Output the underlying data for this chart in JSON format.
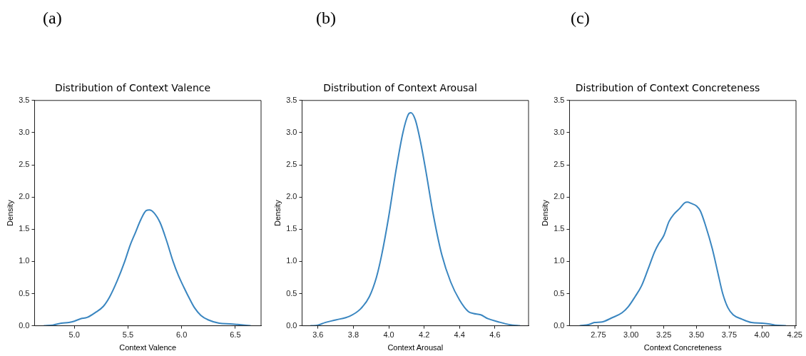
{
  "chart_data": [
    {
      "type": "line",
      "title": "Distribution of Context Valence",
      "xlabel": "Context Valence",
      "ylabel": "Density",
      "annotations": [
        "(a)"
      ],
      "xlim": [
        4.63,
        6.74
      ],
      "xticks": [
        {
          "value": 5,
          "label": "5.0"
        },
        5.5,
        {
          "value": 6,
          "label": "6.0"
        },
        6.5
      ],
      "ylim": [
        0,
        3.5
      ],
      "yticks": [
        {
          "value": 0,
          "label": "0.0"
        },
        0.5,
        {
          "value": 1,
          "label": "1.0"
        },
        1.5,
        {
          "value": 2,
          "label": "2.0"
        },
        2.5,
        {
          "value": 3,
          "label": "3.0"
        },
        3.5
      ],
      "grid": false,
      "legend": false,
      "marker": "none",
      "line_style": "solid",
      "series": [
        {
          "color": "#3a86c0",
          "x": [
            4.72,
            4.8,
            4.88,
            4.95,
            5.0,
            5.06,
            5.12,
            5.2,
            5.27,
            5.33,
            5.4,
            5.47,
            5.52,
            5.57,
            5.62,
            5.67,
            5.7,
            5.74,
            5.8,
            5.86,
            5.92,
            5.97,
            6.02,
            6.08,
            6.12,
            6.18,
            6.25,
            6.35,
            6.45,
            6.52,
            6.64
          ],
          "values": [
            0,
            0.01,
            0.04,
            0.05,
            0.07,
            0.11,
            0.13,
            0.21,
            0.3,
            0.45,
            0.7,
            1.0,
            1.25,
            1.45,
            1.65,
            1.79,
            1.8,
            1.76,
            1.6,
            1.32,
            1.0,
            0.78,
            0.6,
            0.4,
            0.28,
            0.16,
            0.09,
            0.04,
            0.03,
            0.02,
            0
          ]
        }
      ]
    },
    {
      "type": "line",
      "title": "Distribution of Context Arousal",
      "xlabel": "Context Arousal",
      "ylabel": "Density",
      "annotations": [
        "(b)"
      ],
      "xlim": [
        3.51,
        4.79
      ],
      "xticks": [
        3.6,
        3.8,
        {
          "value": 4,
          "label": "4.0"
        },
        4.2,
        4.4,
        4.6
      ],
      "ylim": [
        0,
        3.5
      ],
      "yticks": [
        {
          "value": 0,
          "label": "0.0"
        },
        0.5,
        {
          "value": 1,
          "label": "1.0"
        },
        1.5,
        {
          "value": 2,
          "label": "2.0"
        },
        2.5,
        {
          "value": 3,
          "label": "3.0"
        },
        3.5
      ],
      "grid": false,
      "legend": false,
      "marker": "none",
      "line_style": "solid",
      "series": [
        {
          "color": "#3a86c0",
          "x": [
            3.56,
            3.6,
            3.64,
            3.7,
            3.78,
            3.84,
            3.89,
            3.93,
            3.96,
            4.0,
            4.04,
            4.08,
            4.11,
            4.125,
            4.15,
            4.18,
            4.21,
            4.25,
            4.3,
            4.35,
            4.4,
            4.45,
            4.48,
            4.52,
            4.56,
            4.62,
            4.66,
            4.7,
            4.74
          ],
          "values": [
            0,
            0.01,
            0.05,
            0.09,
            0.15,
            0.26,
            0.45,
            0.75,
            1.1,
            1.7,
            2.4,
            3.0,
            3.28,
            3.31,
            3.2,
            2.85,
            2.4,
            1.75,
            1.1,
            0.68,
            0.4,
            0.22,
            0.19,
            0.17,
            0.11,
            0.06,
            0.03,
            0.01,
            0
          ]
        }
      ]
    },
    {
      "type": "line",
      "title": "Distribution of Context Concreteness",
      "xlabel": "Context Concreteness",
      "ylabel": "Density",
      "annotations": [
        "(c)"
      ],
      "xlim": [
        2.53,
        4.26
      ],
      "xticks": [
        2.75,
        {
          "value": 3,
          "label": "3.00"
        },
        3.25,
        {
          "value": 3.5,
          "label": "3.50"
        },
        3.75,
        {
          "value": 4,
          "label": "4.00"
        },
        4.25
      ],
      "ylim": [
        0,
        3.5
      ],
      "yticks": [
        {
          "value": 0,
          "label": "0.0"
        },
        0.5,
        {
          "value": 1,
          "label": "1.0"
        },
        1.5,
        {
          "value": 2,
          "label": "2.0"
        },
        2.5,
        {
          "value": 3,
          "label": "3.0"
        },
        3.5
      ],
      "grid": false,
      "legend": false,
      "marker": "none",
      "line_style": "solid",
      "series": [
        {
          "color": "#3a86c0",
          "x": [
            2.61,
            2.68,
            2.72,
            2.78,
            2.85,
            2.93,
            2.98,
            3.03,
            3.08,
            3.13,
            3.18,
            3.21,
            3.25,
            3.29,
            3.33,
            3.37,
            3.41,
            3.43,
            3.46,
            3.5,
            3.53,
            3.57,
            3.62,
            3.66,
            3.7,
            3.74,
            3.78,
            3.85,
            3.92,
            4.0,
            4.05,
            4.1,
            4.18
          ],
          "values": [
            0,
            0.02,
            0.05,
            0.06,
            0.12,
            0.2,
            0.3,
            0.45,
            0.62,
            0.88,
            1.15,
            1.27,
            1.4,
            1.62,
            1.74,
            1.82,
            1.91,
            1.92,
            1.9,
            1.86,
            1.78,
            1.55,
            1.2,
            0.85,
            0.5,
            0.28,
            0.17,
            0.1,
            0.05,
            0.04,
            0.03,
            0.01,
            0
          ]
        }
      ]
    }
  ]
}
